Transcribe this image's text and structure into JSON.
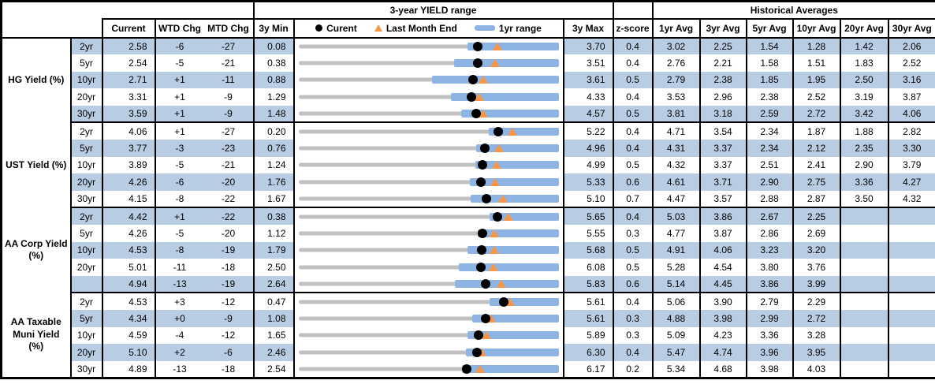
{
  "headers": {
    "chart_title": "3-year YIELD range",
    "hist_title": "Historical Averages"
  },
  "columns": {
    "current": "Current",
    "wtd": "WTD Chg",
    "mtd": "MTD Chg",
    "min": "3y Min",
    "max": "3y Max",
    "z": "z-score",
    "avgs": [
      "1yr Avg",
      "3yr Avg",
      "5yr Avg",
      "10yr Avg",
      "20yr Avg",
      "30yr Avg"
    ]
  },
  "legend": {
    "current": "Curent",
    "lme": "Last Month End",
    "range": "1yr range"
  },
  "colors": {
    "stripe": "#b8cce4",
    "range_bar": "#8db4e2",
    "track": "#c0c0c0",
    "dot": "#000000",
    "triangle": "#f79646"
  },
  "chart_data": {
    "type": "bullet-range-table",
    "note": "Each row: gray track spans 3y Min..3y Max, blue bar is 1yr range (low estimated from pixels, high = 3y max), black dot = Current, orange triangle = last month end (Current - MTD chg in bp / 100).",
    "groups": [
      {
        "label": "HG Yield (%)",
        "label_lines": [
          "HG Yield (%)"
        ],
        "rows": [
          {
            "tenor": "2yr",
            "current": "2.58",
            "wtd": "-6",
            "mtd": "-27",
            "min": "0.08",
            "max": "3.70",
            "z": "0.4",
            "yr1_low": 2.43,
            "avgs": [
              "3.02",
              "2.25",
              "1.54",
              "1.28",
              "1.42",
              "2.06"
            ]
          },
          {
            "tenor": "5yr",
            "current": "2.54",
            "wtd": "-5",
            "mtd": "-21",
            "min": "0.38",
            "max": "3.51",
            "z": "0.4",
            "yr1_low": 2.25,
            "avgs": [
              "2.76",
              "2.21",
              "1.58",
              "1.51",
              "1.83",
              "2.52"
            ]
          },
          {
            "tenor": "10yr",
            "current": "2.71",
            "wtd": "+1",
            "mtd": "-11",
            "min": "0.88",
            "max": "3.61",
            "z": "0.5",
            "yr1_low": 2.28,
            "avgs": [
              "2.79",
              "2.38",
              "1.85",
              "1.95",
              "2.50",
              "3.16"
            ]
          },
          {
            "tenor": "20yr",
            "current": "3.31",
            "wtd": "+1",
            "mtd": "-9",
            "min": "1.29",
            "max": "4.33",
            "z": "0.4",
            "yr1_low": 3.07,
            "avgs": [
              "3.53",
              "2.96",
              "2.38",
              "2.52",
              "3.19",
              "3.87"
            ]
          },
          {
            "tenor": "30yr",
            "current": "3.59",
            "wtd": "+1",
            "mtd": "-9",
            "min": "1.48",
            "max": "4.57",
            "z": "0.5",
            "yr1_low": 3.41,
            "avgs": [
              "3.81",
              "3.18",
              "2.59",
              "2.72",
              "3.42",
              "4.06"
            ]
          }
        ]
      },
      {
        "label": "UST Yield (%)",
        "label_lines": [
          "UST Yield (%)"
        ],
        "rows": [
          {
            "tenor": "2yr",
            "current": "4.06",
            "wtd": "+1",
            "mtd": "-27",
            "min": "0.20",
            "max": "5.22",
            "z": "0.4",
            "yr1_low": 3.87,
            "avgs": [
              "4.71",
              "3.54",
              "2.34",
              "1.87",
              "1.88",
              "2.82"
            ]
          },
          {
            "tenor": "5yr",
            "current": "3.77",
            "wtd": "-3",
            "mtd": "-23",
            "min": "0.76",
            "max": "4.96",
            "z": "0.4",
            "yr1_low": 3.63,
            "avgs": [
              "4.31",
              "3.37",
              "2.34",
              "2.12",
              "2.35",
              "3.30"
            ]
          },
          {
            "tenor": "10yr",
            "current": "3.89",
            "wtd": "-5",
            "mtd": "-21",
            "min": "1.24",
            "max": "4.99",
            "z": "0.5",
            "yr1_low": 3.79,
            "avgs": [
              "4.32",
              "3.37",
              "2.51",
              "2.41",
              "2.90",
              "3.79"
            ]
          },
          {
            "tenor": "20yr",
            "current": "4.26",
            "wtd": "-6",
            "mtd": "-20",
            "min": "1.76",
            "max": "5.33",
            "z": "0.6",
            "yr1_low": 4.11,
            "avgs": [
              "4.61",
              "3.71",
              "2.90",
              "2.75",
              "3.36",
              "4.27"
            ]
          },
          {
            "tenor": "30yr",
            "current": "4.15",
            "wtd": "-8",
            "mtd": "-22",
            "min": "1.67",
            "max": "5.10",
            "z": "0.7",
            "yr1_low": 3.94,
            "avgs": [
              "4.47",
              "3.57",
              "2.88",
              "2.87",
              "3.50",
              "4.32"
            ]
          }
        ]
      },
      {
        "label": "AA Corp Yield (%)",
        "label_lines": [
          "AA Corp Yield",
          "(%)"
        ],
        "rows": [
          {
            "tenor": "2yr",
            "current": "4.42",
            "wtd": "+1",
            "mtd": "-22",
            "min": "0.38",
            "max": "5.65",
            "z": "0.4",
            "yr1_low": 4.25,
            "avgs": [
              "5.03",
              "3.86",
              "2.67",
              "2.25",
              "",
              ""
            ]
          },
          {
            "tenor": "5yr",
            "current": "4.26",
            "wtd": "-5",
            "mtd": "-20",
            "min": "1.12",
            "max": "5.55",
            "z": "0.3",
            "yr1_low": 4.17,
            "avgs": [
              "4.77",
              "3.87",
              "2.86",
              "2.69",
              "",
              ""
            ]
          },
          {
            "tenor": "10yr",
            "current": "4.53",
            "wtd": "-8",
            "mtd": "-19",
            "min": "1.79",
            "max": "5.68",
            "z": "0.5",
            "yr1_low": 4.32,
            "avgs": [
              "4.91",
              "4.06",
              "3.23",
              "3.20",
              "",
              ""
            ]
          },
          {
            "tenor": "20yr",
            "current": "5.01",
            "wtd": "-11",
            "mtd": "-18",
            "min": "2.50",
            "max": "6.08",
            "z": "0.5",
            "yr1_low": 4.71,
            "avgs": [
              "5.28",
              "4.54",
              "3.80",
              "3.76",
              "",
              ""
            ]
          },
          {
            "tenor": "",
            "current": "4.94",
            "wtd": "-13",
            "mtd": "-19",
            "min": "2.64",
            "max": "5.83",
            "z": "0.6",
            "yr1_low": 4.56,
            "avgs": [
              "5.14",
              "4.45",
              "3.86",
              "3.99",
              "",
              ""
            ]
          }
        ]
      },
      {
        "label": "AA Taxable Muni Yield (%)",
        "label_lines": [
          "AA Taxable",
          "Muni Yield",
          "(%)"
        ],
        "rows": [
          {
            "tenor": "2yr",
            "current": "4.53",
            "wtd": "+3",
            "mtd": "-12",
            "min": "0.47",
            "max": "5.61",
            "z": "0.4",
            "yr1_low": 4.25,
            "avgs": [
              "5.06",
              "3.90",
              "2.79",
              "2.29",
              "",
              ""
            ]
          },
          {
            "tenor": "5yr",
            "current": "4.34",
            "wtd": "+0",
            "mtd": "-9",
            "min": "1.08",
            "max": "5.61",
            "z": "0.3",
            "yr1_low": 4.11,
            "avgs": [
              "4.88",
              "3.98",
              "2.99",
              "2.72",
              "",
              ""
            ]
          },
          {
            "tenor": "10yr",
            "current": "4.59",
            "wtd": "-4",
            "mtd": "-12",
            "min": "1.65",
            "max": "5.89",
            "z": "0.3",
            "yr1_low": 4.41,
            "avgs": [
              "5.09",
              "4.23",
              "3.36",
              "3.28",
              "",
              ""
            ]
          },
          {
            "tenor": "20yr",
            "current": "5.10",
            "wtd": "+2",
            "mtd": "-6",
            "min": "2.46",
            "max": "6.30",
            "z": "0.4",
            "yr1_low": 4.93,
            "avgs": [
              "5.47",
              "4.74",
              "3.96",
              "3.95",
              "",
              ""
            ]
          },
          {
            "tenor": "30yr",
            "current": "4.89",
            "wtd": "-13",
            "mtd": "-18",
            "min": "2.54",
            "max": "6.17",
            "z": "0.2",
            "yr1_low": 4.82,
            "avgs": [
              "5.34",
              "4.68",
              "3.98",
              "4.03",
              "",
              ""
            ]
          }
        ]
      }
    ]
  }
}
